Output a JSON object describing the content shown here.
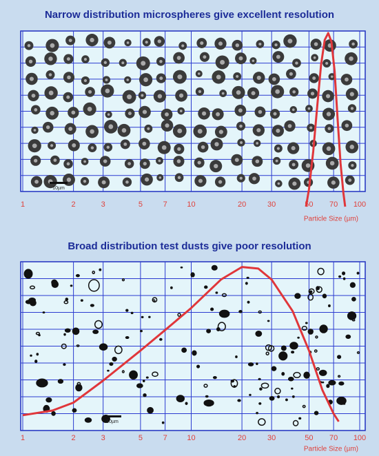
{
  "chart_data": [
    {
      "type": "line",
      "title": "Narrow distribution microspheres give excellent resolution",
      "xlabel": "Particle Size (µm)",
      "scale_label": "10µm",
      "log_x": true,
      "xlim": [
        1,
        100
      ],
      "xticks": [
        1,
        2,
        3,
        5,
        7,
        10,
        20,
        30,
        50,
        70,
        100
      ],
      "ylim": [
        0,
        1
      ],
      "grid": true,
      "color": "#e0363a",
      "x": [
        48,
        50,
        53,
        56,
        59,
        62,
        65,
        68,
        71,
        74,
        77,
        80,
        82
      ],
      "values": [
        0.0,
        0.1,
        0.32,
        0.58,
        0.82,
        0.96,
        1.0,
        0.95,
        0.78,
        0.5,
        0.25,
        0.08,
        0.0
      ]
    },
    {
      "type": "line",
      "title": "Broad distribution test dusts give poor resolution",
      "xlabel": "Particle Size (µm)",
      "scale_label": "10µm",
      "log_x": true,
      "xlim": [
        1,
        100
      ],
      "xticks": [
        1,
        2,
        3,
        5,
        7,
        10,
        20,
        30,
        50,
        70,
        100
      ],
      "ylim": [
        0,
        1
      ],
      "grid": true,
      "color": "#e0363a",
      "x": [
        1,
        1.5,
        2,
        3,
        5,
        7,
        10,
        15,
        20,
        25,
        30,
        40,
        50,
        60,
        70,
        75
      ],
      "values": [
        0.04,
        0.07,
        0.12,
        0.26,
        0.45,
        0.58,
        0.72,
        0.9,
        0.98,
        0.97,
        0.9,
        0.7,
        0.45,
        0.2,
        0.05,
        0.0
      ]
    }
  ]
}
